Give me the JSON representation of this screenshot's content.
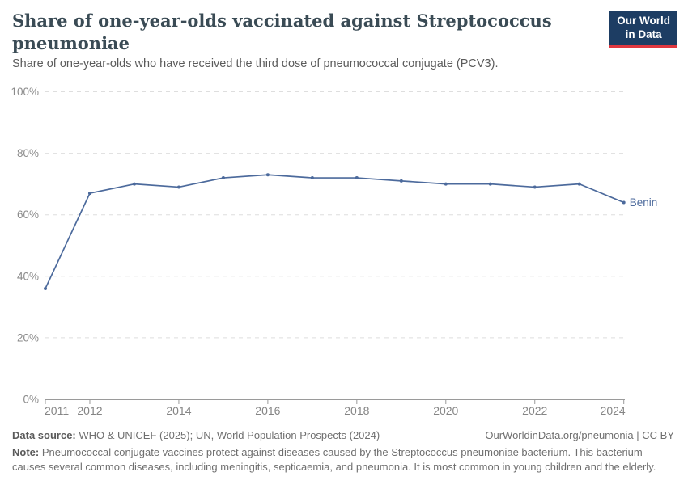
{
  "header": {
    "title": "Share of one-year-olds vaccinated against Streptococcus pneumoniae",
    "subtitle": "Share of one-year-olds who have received the third dose of pneumococcal conjugate (PCV3)."
  },
  "logo": {
    "line1": "Our World",
    "line2": "in Data",
    "bg_color": "#1d3d63",
    "accent_color": "#e0373f",
    "text_color": "#ffffff"
  },
  "chart_data": {
    "type": "line",
    "title": "Share of one-year-olds vaccinated against Streptococcus pneumoniae",
    "x": [
      2011,
      2012,
      2013,
      2014,
      2015,
      2016,
      2017,
      2018,
      2019,
      2020,
      2021,
      2022,
      2023,
      2024
    ],
    "series": [
      {
        "name": "Benin",
        "color": "#4c6a9c",
        "values": [
          36,
          67,
          70,
          69,
          72,
          73,
          72,
          72,
          71,
          70,
          70,
          69,
          70,
          64
        ]
      }
    ],
    "xlabel": "",
    "ylabel": "",
    "ylim": [
      0,
      100
    ],
    "yticks": [
      0,
      20,
      40,
      60,
      80,
      100
    ],
    "ytick_suffix": "%",
    "xticks": [
      2011,
      2012,
      2014,
      2016,
      2018,
      2020,
      2022,
      2024
    ],
    "grid": "horizontal-dashed",
    "legend_position": "end-of-line-label"
  },
  "footer": {
    "datasource_label": "Data source:",
    "datasource_text": " WHO & UNICEF (2025); UN, World Population Prospects (2024)",
    "link_text": "OurWorldinData.org/pneumonia | CC BY",
    "note_label": "Note:",
    "note_text": " Pneumococcal conjugate vaccines protect against diseases caused by the Streptococcus pneumoniae bacterium. This bacterium causes several common diseases, including meningitis, septicaemia, and pneumonia. It is most common in young children and the elderly."
  }
}
